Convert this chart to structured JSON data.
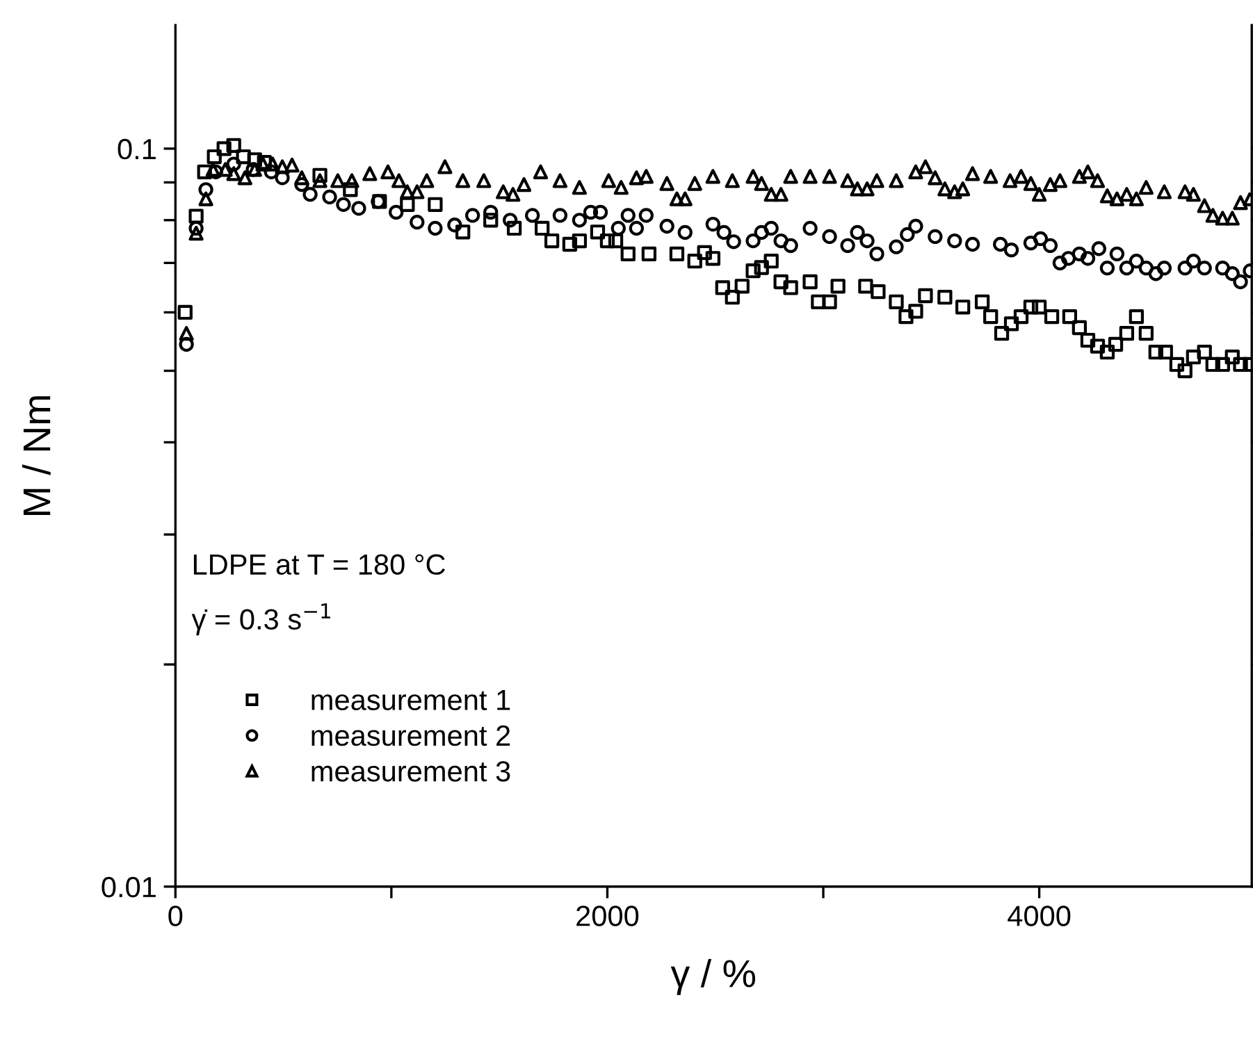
{
  "chart_data": {
    "type": "scatter",
    "xlabel": "γ / %",
    "ylabel": "M / Nm",
    "log": "y",
    "xlim": [
      0,
      4984
    ],
    "xticks": [
      0,
      {
        "value": 1000,
        "label": null
      },
      2000,
      {
        "value": 3000,
        "label": null
      },
      4000
    ],
    "ylim": [
      0.01,
      0.147
    ],
    "yticks": [
      0.01,
      {
        "value": 0.02,
        "label": null
      },
      {
        "value": 0.03,
        "label": null
      },
      {
        "value": 0.04,
        "label": null
      },
      {
        "value": 0.05,
        "label": null
      },
      {
        "value": 0.06,
        "label": null
      },
      {
        "value": 0.07,
        "label": null
      },
      {
        "value": 0.08,
        "label": null
      },
      {
        "value": 0.09,
        "label": null
      },
      0.1
    ],
    "grid": false,
    "legend": "bottom left",
    "annotations": [
      "LDPE at T = 180 °C",
      "γ̇ = 0.3 s$^{−1}$"
    ],
    "series": [
      {
        "name": "measurement 1",
        "color": "#000000",
        "marker": "square",
        "x": [
          45,
          96,
          135,
          180,
          225,
          270,
          315,
          367,
          412,
          669,
          810,
          945,
          1074,
          1203,
          1331,
          1460,
          1569,
          1698,
          1743,
          1826,
          1871,
          1955,
          2000,
          2039,
          2096,
          2193,
          2322,
          2405,
          2450,
          2489,
          2534,
          2579,
          2624,
          2675,
          2714,
          2759,
          2804,
          2849,
          2939,
          2977,
          3029,
          3068,
          3196,
          3254,
          3338,
          3383,
          3428,
          3473,
          3563,
          3646,
          3736,
          3775,
          3826,
          3871,
          3916,
          3961,
          4000,
          4058,
          4141,
          4186,
          4225,
          4270,
          4315,
          4354,
          4405,
          4450,
          4495,
          4540,
          4585,
          4637,
          4675,
          4714,
          4765,
          4804,
          4849,
          4894,
          4932,
          4977
        ],
        "values": [
          0.06,
          0.081,
          0.093,
          0.0975,
          0.1,
          0.101,
          0.0975,
          0.0966,
          0.0958,
          0.092,
          0.088,
          0.0848,
          0.084,
          0.084,
          0.0771,
          0.08,
          0.078,
          0.078,
          0.075,
          0.0742,
          0.075,
          0.0771,
          0.075,
          0.075,
          0.072,
          0.072,
          0.072,
          0.0704,
          0.0723,
          0.071,
          0.0648,
          0.0629,
          0.0651,
          0.0683,
          0.069,
          0.0704,
          0.066,
          0.0648,
          0.066,
          0.062,
          0.062,
          0.0651,
          0.0651,
          0.064,
          0.062,
          0.0592,
          0.0602,
          0.0632,
          0.0629,
          0.061,
          0.062,
          0.0592,
          0.0562,
          0.0579,
          0.0592,
          0.061,
          0.061,
          0.0592,
          0.0592,
          0.0572,
          0.055,
          0.054,
          0.053,
          0.0543,
          0.0562,
          0.0592,
          0.0562,
          0.053,
          0.053,
          0.051,
          0.05,
          0.0522,
          0.053,
          0.051,
          0.051,
          0.0522,
          0.051,
          0.051
        ]
      },
      {
        "name": "measurement 2",
        "color": "#000000",
        "marker": "circle",
        "x": [
          51,
          96,
          141,
          187,
          270,
          360,
          444,
          495,
          585,
          624,
          714,
          778,
          849,
          939,
          1022,
          1119,
          1203,
          1293,
          1376,
          1460,
          1550,
          1653,
          1781,
          1871,
          1923,
          1968,
          2051,
          2096,
          2135,
          2180,
          2276,
          2360,
          2489,
          2540,
          2585,
          2675,
          2714,
          2759,
          2804,
          2849,
          2939,
          3029,
          3113,
          3158,
          3203,
          3248,
          3338,
          3389,
          3428,
          3518,
          3608,
          3691,
          3820,
          3871,
          3961,
          4006,
          4051,
          4096,
          4135,
          4186,
          4225,
          4276,
          4315,
          4360,
          4405,
          4450,
          4495,
          4540,
          4579,
          4675,
          4714,
          4765,
          4849,
          4894,
          4932,
          4977
        ],
        "values": [
          0.0543,
          0.078,
          0.088,
          0.093,
          0.0953,
          0.0937,
          0.093,
          0.0913,
          0.0894,
          0.0867,
          0.086,
          0.084,
          0.083,
          0.0848,
          0.082,
          0.0795,
          0.078,
          0.0788,
          0.0812,
          0.082,
          0.08,
          0.0812,
          0.0812,
          0.08,
          0.082,
          0.082,
          0.078,
          0.0812,
          0.078,
          0.0812,
          0.0785,
          0.077,
          0.079,
          0.077,
          0.0748,
          0.075,
          0.077,
          0.078,
          0.075,
          0.0739,
          0.078,
          0.076,
          0.0739,
          0.077,
          0.075,
          0.072,
          0.0736,
          0.0765,
          0.0785,
          0.076,
          0.075,
          0.0742,
          0.0742,
          0.0729,
          0.0745,
          0.0755,
          0.0739,
          0.07,
          0.071,
          0.072,
          0.071,
          0.0732,
          0.0689,
          0.072,
          0.0689,
          0.0704,
          0.0689,
          0.0677,
          0.0689,
          0.0689,
          0.0704,
          0.0689,
          0.0689,
          0.0677,
          0.066,
          0.0683
        ]
      },
      {
        "name": "measurement 3",
        "color": "#000000",
        "marker": "triangle",
        "x": [
          51,
          96,
          141,
          174,
          231,
          270,
          322,
          367,
          405,
          450,
          495,
          540,
          585,
          669,
          752,
          817,
          900,
          984,
          1035,
          1074,
          1119,
          1164,
          1248,
          1331,
          1428,
          1518,
          1563,
          1614,
          1691,
          1781,
          1871,
          2006,
          2064,
          2135,
          2180,
          2276,
          2322,
          2360,
          2405,
          2489,
          2579,
          2675,
          2714,
          2759,
          2804,
          2849,
          2939,
          3029,
          3113,
          3158,
          3203,
          3248,
          3338,
          3428,
          3473,
          3518,
          3563,
          3608,
          3646,
          3691,
          3775,
          3865,
          3916,
          3961,
          4000,
          4051,
          4096,
          4186,
          4225,
          4270,
          4315,
          4360,
          4405,
          4450,
          4495,
          4579,
          4675,
          4714,
          4765,
          4804,
          4849,
          4894,
          4932,
          4977
        ],
        "values": [
          0.0562,
          0.0768,
          0.0855,
          0.0937,
          0.0937,
          0.0925,
          0.0913,
          0.0937,
          0.0953,
          0.0953,
          0.0945,
          0.095,
          0.0913,
          0.0905,
          0.0905,
          0.0905,
          0.0925,
          0.093,
          0.0905,
          0.0874,
          0.0874,
          0.0905,
          0.0945,
          0.0905,
          0.0905,
          0.0874,
          0.0867,
          0.0894,
          0.093,
          0.0905,
          0.0886,
          0.0905,
          0.0886,
          0.0913,
          0.0917,
          0.0897,
          0.0855,
          0.0855,
          0.0897,
          0.0917,
          0.0905,
          0.0917,
          0.0897,
          0.0867,
          0.0867,
          0.0917,
          0.0917,
          0.0917,
          0.0905,
          0.0882,
          0.0882,
          0.0905,
          0.0905,
          0.093,
          0.0945,
          0.0913,
          0.0882,
          0.0874,
          0.0882,
          0.0925,
          0.0917,
          0.0905,
          0.0917,
          0.0897,
          0.0867,
          0.0894,
          0.0905,
          0.0917,
          0.093,
          0.0905,
          0.0863,
          0.0855,
          0.0867,
          0.0855,
          0.0886,
          0.0874,
          0.0874,
          0.0867,
          0.0837,
          0.0812,
          0.0805,
          0.0805,
          0.0845,
          0.0855
        ]
      }
    ]
  }
}
